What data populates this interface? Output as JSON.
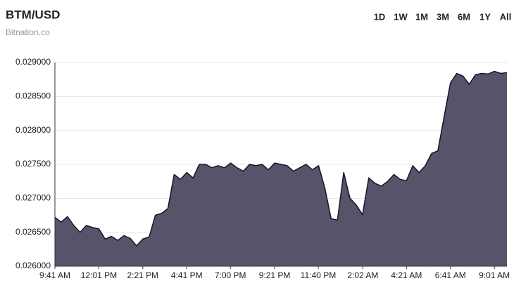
{
  "chart_data": {
    "type": "area",
    "title": "BTM/USD",
    "subtitle": "Bitnation.co",
    "x": [
      0,
      20,
      40,
      60,
      80,
      100,
      120,
      140,
      160,
      180,
      200,
      220,
      240,
      260,
      280,
      300,
      320,
      340,
      360,
      380,
      400,
      420,
      440,
      460,
      480,
      500,
      520,
      540,
      560,
      580,
      600,
      620,
      640,
      660,
      680,
      700,
      720,
      740,
      760,
      780,
      800,
      820,
      840,
      860,
      880,
      900,
      920,
      940,
      960,
      980,
      1000,
      1020,
      1040,
      1060,
      1080,
      1100,
      1120,
      1140,
      1160,
      1180,
      1200,
      1220,
      1240,
      1260,
      1280,
      1300,
      1320,
      1340,
      1360,
      1380,
      1400,
      1420,
      1440
    ],
    "series": [
      {
        "name": "BTM/USD",
        "color": "#55546a",
        "line_color": "#16162a",
        "values": [
          0.02672,
          0.02665,
          0.02673,
          0.0266,
          0.0265,
          0.0266,
          0.02657,
          0.02655,
          0.0264,
          0.02644,
          0.02638,
          0.02645,
          0.02641,
          0.0263,
          0.0264,
          0.02643,
          0.02675,
          0.02678,
          0.02685,
          0.02735,
          0.02728,
          0.02738,
          0.0273,
          0.0275,
          0.0275,
          0.02745,
          0.02748,
          0.02745,
          0.02752,
          0.02745,
          0.0274,
          0.0275,
          0.02748,
          0.0275,
          0.02742,
          0.02752,
          0.0275,
          0.02748,
          0.0274,
          0.02745,
          0.0275,
          0.02742,
          0.02748,
          0.02715,
          0.0267,
          0.02668,
          0.02738,
          0.027,
          0.0269,
          0.02676,
          0.0273,
          0.02722,
          0.02718,
          0.02725,
          0.02735,
          0.02728,
          0.02726,
          0.02748,
          0.02738,
          0.02748,
          0.02766,
          0.0277,
          0.0282,
          0.0287,
          0.02884,
          0.0288,
          0.02868,
          0.02882,
          0.02884,
          0.02883,
          0.02887,
          0.02884,
          0.02885
        ]
      }
    ],
    "xlim": [
      0,
      1440
    ],
    "xticks": [
      {
        "value": 0,
        "label": "9:41 AM"
      },
      {
        "value": 140,
        "label": "12:01 PM"
      },
      {
        "value": 280,
        "label": "2:21 PM"
      },
      {
        "value": 420,
        "label": "4:41 PM"
      },
      {
        "value": 559,
        "label": "7:00 PM"
      },
      {
        "value": 700,
        "label": "9:21 PM"
      },
      {
        "value": 839,
        "label": "11:40 PM"
      },
      {
        "value": 981,
        "label": "2:02 AM"
      },
      {
        "value": 1120,
        "label": "4:21 AM"
      },
      {
        "value": 1260,
        "label": "6:41 AM"
      },
      {
        "value": 1400,
        "label": "9:01 AM"
      }
    ],
    "ylim": [
      0.026,
      0.029
    ],
    "yticks": [
      {
        "value": 0.026,
        "label": "0.026000"
      },
      {
        "value": 0.0265,
        "label": "0.026500"
      },
      {
        "value": 0.027,
        "label": "0.027000"
      },
      {
        "value": 0.0275,
        "label": "0.027500"
      },
      {
        "value": 0.028,
        "label": "0.028000"
      },
      {
        "value": 0.0285,
        "label": "0.028500"
      },
      {
        "value": 0.029,
        "label": "0.029000"
      }
    ],
    "grid": true
  },
  "range_buttons": [
    "1D",
    "1W",
    "1M",
    "3M",
    "6M",
    "1Y",
    "All"
  ]
}
